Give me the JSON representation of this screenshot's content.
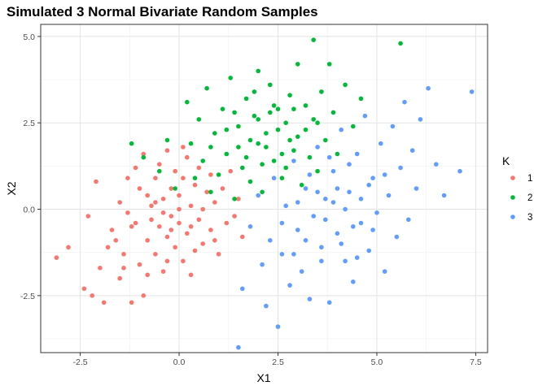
{
  "chart_data": {
    "type": "scatter",
    "title": "Simulated 3 Normal Bivariate Random Samples",
    "xlabel": "X1",
    "ylabel": "X2",
    "xlim": [
      -3.5,
      7.8
    ],
    "ylim": [
      -4.15,
      5.35
    ],
    "x_ticks": [
      -2.5,
      0.0,
      2.5,
      5.0,
      7.5
    ],
    "x_tick_labels": [
      "-2.5",
      "0.0",
      "2.5",
      "5.0",
      "7.5"
    ],
    "y_ticks": [
      -2.5,
      0.0,
      2.5,
      5.0
    ],
    "y_tick_labels": [
      "-2.5",
      "0.0",
      "2.5",
      "5.0"
    ],
    "grid": true,
    "legend": {
      "title": "K",
      "placement": "right"
    },
    "series": [
      {
        "name": "1",
        "color": "#F8766D",
        "points": [
          [
            -3.1,
            -1.4
          ],
          [
            -2.8,
            -1.1
          ],
          [
            -2.4,
            -2.3
          ],
          [
            -2.2,
            -2.5
          ],
          [
            -2.3,
            -0.2
          ],
          [
            -2.1,
            0.8
          ],
          [
            -2.0,
            -1.7
          ],
          [
            -1.9,
            -2.7
          ],
          [
            -1.8,
            -1.1
          ],
          [
            -1.7,
            -0.6
          ],
          [
            -1.6,
            -0.9
          ],
          [
            -1.5,
            -2.0
          ],
          [
            -1.4,
            -1.3
          ],
          [
            -1.3,
            -0.1
          ],
          [
            -1.3,
            0.9
          ],
          [
            -1.2,
            -2.7
          ],
          [
            -1.1,
            1.2
          ],
          [
            -1.1,
            -0.4
          ],
          [
            -1.0,
            -1.6
          ],
          [
            -0.9,
            -2.5
          ],
          [
            -0.9,
            1.6
          ],
          [
            -0.8,
            0.4
          ],
          [
            -0.8,
            -0.9
          ],
          [
            -0.7,
            0.1
          ],
          [
            -0.6,
            -1.3
          ],
          [
            -0.6,
            0.9
          ],
          [
            -0.5,
            -0.5
          ],
          [
            -0.5,
            1.3
          ],
          [
            -0.4,
            -1.8
          ],
          [
            -0.4,
            0.3
          ],
          [
            -0.3,
            -0.8
          ],
          [
            -0.3,
            1.7
          ],
          [
            -0.2,
            0.6
          ],
          [
            -0.2,
            -0.2
          ],
          [
            -0.1,
            -1.1
          ],
          [
            -0.1,
            1.1
          ],
          [
            0.0,
            -0.4
          ],
          [
            0.0,
            0.4
          ],
          [
            0.1,
            -1.5
          ],
          [
            0.1,
            0.9
          ],
          [
            0.2,
            -0.7
          ],
          [
            0.2,
            1.5
          ],
          [
            0.3,
            0.1
          ],
          [
            0.3,
            -1.9
          ],
          [
            0.4,
            0.7
          ],
          [
            0.5,
            -0.3
          ],
          [
            0.5,
            1.2
          ],
          [
            0.6,
            -1.0
          ],
          [
            0.7,
            0.5
          ],
          [
            0.8,
            -0.6
          ],
          [
            0.8,
            1.0
          ],
          [
            0.9,
            0.2
          ],
          [
            1.0,
            -1.3
          ],
          [
            1.1,
            0.6
          ],
          [
            1.2,
            -0.4
          ],
          [
            1.3,
            1.1
          ],
          [
            1.4,
            -0.2
          ],
          [
            1.5,
            0.3
          ],
          [
            1.6,
            -0.8
          ],
          [
            -1.2,
            -0.5
          ],
          [
            -0.7,
            -0.3
          ],
          [
            -0.4,
            -0.1
          ],
          [
            0.0,
            0.0
          ],
          [
            0.3,
            -0.5
          ],
          [
            -0.6,
            0.2
          ],
          [
            -0.2,
            -0.6
          ],
          [
            0.4,
            -1.2
          ],
          [
            -1.0,
            0.6
          ],
          [
            -1.5,
            0.2
          ],
          [
            -0.8,
            -1.9
          ],
          [
            0.6,
            0.0
          ],
          [
            -0.3,
            -1.5
          ],
          [
            0.1,
            1.8
          ],
          [
            -1.4,
            -1.7
          ],
          [
            0.9,
            -0.9
          ]
        ]
      },
      {
        "name": "2",
        "color": "#00BA38",
        "points": [
          [
            -1.2,
            1.9
          ],
          [
            -0.9,
            1.5
          ],
          [
            -0.5,
            1.1
          ],
          [
            -0.3,
            2.0
          ],
          [
            -0.1,
            0.6
          ],
          [
            0.2,
            3.1
          ],
          [
            0.3,
            1.9
          ],
          [
            0.4,
            0.9
          ],
          [
            0.5,
            2.6
          ],
          [
            0.6,
            1.4
          ],
          [
            0.7,
            3.5
          ],
          [
            0.8,
            0.5
          ],
          [
            0.9,
            2.2
          ],
          [
            1.0,
            1.0
          ],
          [
            1.1,
            2.9
          ],
          [
            1.2,
            1.6
          ],
          [
            1.3,
            3.8
          ],
          [
            1.4,
            0.3
          ],
          [
            1.5,
            2.4
          ],
          [
            1.6,
            1.2
          ],
          [
            1.7,
            3.2
          ],
          [
            1.8,
            0.8
          ],
          [
            1.9,
            2.7
          ],
          [
            2.0,
            1.9
          ],
          [
            2.0,
            4.0
          ],
          [
            2.1,
            0.5
          ],
          [
            2.2,
            2.2
          ],
          [
            2.3,
            3.6
          ],
          [
            2.4,
            1.4
          ],
          [
            2.5,
            2.9
          ],
          [
            2.6,
            0.9
          ],
          [
            2.7,
            2.5
          ],
          [
            2.8,
            3.3
          ],
          [
            2.9,
            1.7
          ],
          [
            3.0,
            4.2
          ],
          [
            3.0,
            2.1
          ],
          [
            3.1,
            0.7
          ],
          [
            3.2,
            3.0
          ],
          [
            3.3,
            1.5
          ],
          [
            3.4,
            4.9
          ],
          [
            3.4,
            2.6
          ],
          [
            3.5,
            1.1
          ],
          [
            3.6,
            3.4
          ],
          [
            3.7,
            2.0
          ],
          [
            3.8,
            4.2
          ],
          [
            3.9,
            2.8
          ],
          [
            4.0,
            1.6
          ],
          [
            4.2,
            3.6
          ],
          [
            4.4,
            2.4
          ],
          [
            4.6,
            3.2
          ],
          [
            5.6,
            4.8
          ],
          [
            1.8,
            2.0
          ],
          [
            2.2,
            1.8
          ],
          [
            2.5,
            2.3
          ],
          [
            1.5,
            1.8
          ],
          [
            2.8,
            2.0
          ],
          [
            2.0,
            2.6
          ],
          [
            3.2,
            2.3
          ],
          [
            1.2,
            2.3
          ],
          [
            2.4,
            3.0
          ],
          [
            1.7,
            1.5
          ],
          [
            2.6,
            1.6
          ],
          [
            2.1,
            1.3
          ],
          [
            2.9,
            2.9
          ],
          [
            1.4,
            2.8
          ],
          [
            3.5,
            2.5
          ],
          [
            0.8,
            1.8
          ],
          [
            1.9,
            3.4
          ],
          [
            2.3,
            2.8
          ],
          [
            2.7,
            1.2
          ]
        ]
      },
      {
        "name": "3",
        "color": "#619CFF",
        "points": [
          [
            1.5,
            -4.0
          ],
          [
            1.6,
            -2.3
          ],
          [
            1.8,
            -0.5
          ],
          [
            2.0,
            0.4
          ],
          [
            2.1,
            -1.6
          ],
          [
            2.2,
            -2.8
          ],
          [
            2.3,
            -0.9
          ],
          [
            2.4,
            0.9
          ],
          [
            2.5,
            -3.4
          ],
          [
            2.6,
            -1.3
          ],
          [
            2.7,
            0.1
          ],
          [
            2.8,
            -2.2
          ],
          [
            2.9,
            1.4
          ],
          [
            3.0,
            -0.6
          ],
          [
            3.1,
            -1.8
          ],
          [
            3.2,
            0.6
          ],
          [
            3.3,
            -2.6
          ],
          [
            3.4,
            -0.2
          ],
          [
            3.5,
            1.8
          ],
          [
            3.6,
            -1.1
          ],
          [
            3.7,
            0.3
          ],
          [
            3.8,
            -2.7
          ],
          [
            3.9,
            1.1
          ],
          [
            4.0,
            -0.7
          ],
          [
            4.1,
            2.3
          ],
          [
            4.2,
            -1.5
          ],
          [
            4.3,
            0.5
          ],
          [
            4.4,
            -2.1
          ],
          [
            4.5,
            1.6
          ],
          [
            4.6,
            -0.4
          ],
          [
            4.7,
            2.7
          ],
          [
            4.8,
            -1.2
          ],
          [
            4.9,
            0.9
          ],
          [
            5.0,
            -0.1
          ],
          [
            5.1,
            1.9
          ],
          [
            5.2,
            -1.8
          ],
          [
            5.3,
            0.4
          ],
          [
            5.4,
            2.4
          ],
          [
            5.5,
            -0.8
          ],
          [
            5.6,
            1.2
          ],
          [
            5.7,
            3.1
          ],
          [
            5.8,
            -0.3
          ],
          [
            5.9,
            1.7
          ],
          [
            6.0,
            0.6
          ],
          [
            6.1,
            2.6
          ],
          [
            6.3,
            3.5
          ],
          [
            6.5,
            1.3
          ],
          [
            6.7,
            0.4
          ],
          [
            7.1,
            1.1
          ],
          [
            7.4,
            3.4
          ],
          [
            3.9,
            0.2
          ],
          [
            4.2,
            0.0
          ],
          [
            4.0,
            0.6
          ],
          [
            3.7,
            -0.3
          ],
          [
            4.4,
            -0.5
          ],
          [
            3.5,
            0.5
          ],
          [
            4.6,
            0.3
          ],
          [
            3.2,
            -0.9
          ],
          [
            4.8,
            0.7
          ],
          [
            3.6,
            -1.5
          ],
          [
            4.3,
            1.3
          ],
          [
            3.0,
            0.2
          ],
          [
            4.9,
            -0.6
          ],
          [
            3.3,
            1.0
          ],
          [
            4.1,
            -1.0
          ],
          [
            2.6,
            -0.4
          ],
          [
            5.2,
            1.0
          ],
          [
            3.8,
            1.5
          ],
          [
            4.5,
            -1.4
          ],
          [
            2.9,
            -1.3
          ]
        ]
      }
    ]
  }
}
